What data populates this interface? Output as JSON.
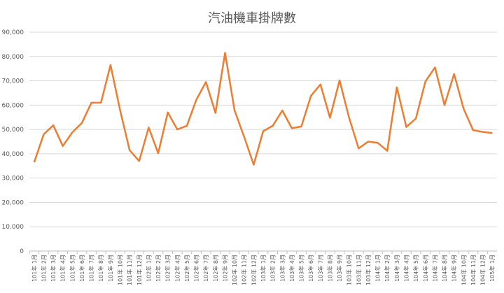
{
  "chart_data": {
    "type": "line",
    "title": "汽油機車掛牌數",
    "xlabel": "",
    "ylabel": "",
    "ylim": [
      0,
      90000
    ],
    "yticks": [
      "0",
      "10,000",
      "20,000",
      "30,000",
      "40,000",
      "50,000",
      "60,000",
      "70,000",
      "80,000",
      "90,000"
    ],
    "grid": true,
    "legend": "none",
    "color": "#ed7d31",
    "categories": [
      "101年 1月",
      "101年 2月",
      "101年 3月",
      "101年 4月",
      "101年 5月",
      "101年 6月",
      "101年 7月",
      "101年 8月",
      "101年 9月",
      "101年 10月",
      "101年 11月",
      "101年 12月",
      "102年 1月",
      "102年 2月",
      "102年 3月",
      "102年 4月",
      "102年 5月",
      "102年 6月",
      "102年 7月",
      "102年 8月",
      "102年 9月",
      "102年 10月",
      "102年 11月",
      "102年 12月",
      "103年 1月",
      "103年 2月",
      "103年 3月",
      "103年 4月",
      "103年 5月",
      "103年 6月",
      "103年 7月",
      "103年 8月",
      "103年 9月",
      "103年 10月",
      "103年 11月",
      "103年 12月",
      "104年 1月",
      "104年 2月",
      "104年 3月",
      "104年 4月",
      "104年 5月",
      "104年 6月",
      "104年 7月",
      "104年 8月",
      "104年 9月",
      "104年 10月",
      "104年 11月",
      "104年 12月",
      "105年 1月"
    ],
    "series": [
      {
        "values": [
          36500,
          48000,
          51700,
          43200,
          48800,
          52700,
          61000,
          61000,
          76500,
          58000,
          41500,
          37000,
          50800,
          40200,
          57000,
          50000,
          51500,
          62300,
          69500,
          56800,
          81500,
          57800,
          47000,
          35500,
          49300,
          51500,
          57800,
          50500,
          51200,
          63800,
          68500,
          54800,
          70200,
          54800,
          42200,
          45000,
          44500,
          41200,
          67300,
          51000,
          54500,
          69800,
          75500,
          60000,
          72800,
          58500,
          49700,
          49000,
          48500
        ]
      }
    ]
  }
}
